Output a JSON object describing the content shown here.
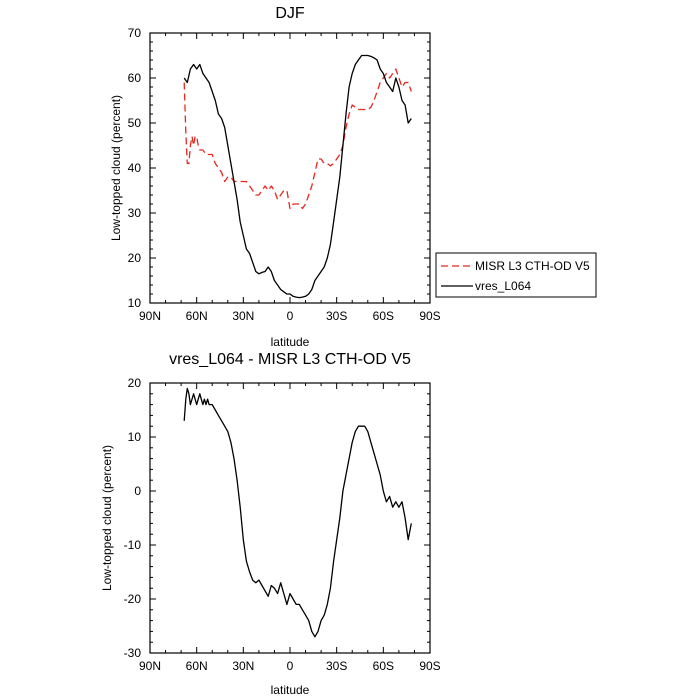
{
  "chart_data": [
    {
      "type": "line",
      "title": "DJF",
      "xlabel": "latitude",
      "ylabel": "Low-topped cloud (percent)",
      "xlim": [
        -90,
        90
      ],
      "ylim": [
        10,
        70
      ],
      "x_ticks": [
        -90,
        -60,
        -30,
        0,
        30,
        60,
        90
      ],
      "x_tick_labels": [
        "90N",
        "60N",
        "30N",
        "0",
        "30S",
        "60S",
        "90S"
      ],
      "y_ticks": [
        10,
        20,
        30,
        40,
        50,
        60,
        70
      ],
      "y_tick_labels": [
        "10",
        "20",
        "30",
        "40",
        "50",
        "60",
        "70"
      ],
      "legend": "right-outside",
      "series": [
        {
          "name": "MISR L3 CTH-OD V5",
          "color": "#e8271f",
          "dash": "dashed",
          "points": [
            [
              -68,
              59
            ],
            [
              -67,
              48
            ],
            [
              -66,
              41
            ],
            [
              -65,
              41
            ],
            [
              -64,
              45
            ],
            [
              -63,
              47
            ],
            [
              -62,
              45
            ],
            [
              -61,
              47
            ],
            [
              -60,
              47
            ],
            [
              -59,
              45
            ],
            [
              -58,
              44
            ],
            [
              -56,
              44
            ],
            [
              -54,
              43
            ],
            [
              -52,
              43
            ],
            [
              -50,
              43
            ],
            [
              -48,
              41
            ],
            [
              -46,
              40
            ],
            [
              -44,
              39
            ],
            [
              -42,
              37
            ],
            [
              -40,
              38
            ],
            [
              -38,
              38
            ],
            [
              -36,
              37
            ],
            [
              -34,
              37
            ],
            [
              -32,
              37
            ],
            [
              -30,
              37
            ],
            [
              -28,
              37
            ],
            [
              -26,
              36
            ],
            [
              -24,
              35
            ],
            [
              -22,
              34
            ],
            [
              -20,
              34
            ],
            [
              -18,
              35
            ],
            [
              -16,
              36
            ],
            [
              -14,
              35
            ],
            [
              -12,
              36
            ],
            [
              -10,
              35
            ],
            [
              -8,
              33
            ],
            [
              -6,
              34
            ],
            [
              -4,
              35
            ],
            [
              -2,
              35
            ],
            [
              0,
              31
            ],
            [
              2,
              32
            ],
            [
              4,
              32
            ],
            [
              6,
              32
            ],
            [
              8,
              31
            ],
            [
              10,
              32
            ],
            [
              12,
              34
            ],
            [
              14,
              36
            ],
            [
              16,
              39
            ],
            [
              18,
              42
            ],
            [
              20,
              42
            ],
            [
              22,
              41
            ],
            [
              24,
              41
            ],
            [
              26,
              40.5
            ],
            [
              28,
              41
            ],
            [
              30,
              42
            ],
            [
              32,
              43
            ],
            [
              34,
              45
            ],
            [
              36,
              49
            ],
            [
              38,
              52
            ],
            [
              40,
              54
            ],
            [
              42,
              53.5
            ],
            [
              44,
              53
            ],
            [
              46,
              53
            ],
            [
              48,
              53
            ],
            [
              50,
              53
            ],
            [
              52,
              53.5
            ],
            [
              54,
              55
            ],
            [
              56,
              57
            ],
            [
              58,
              59
            ],
            [
              60,
              60
            ],
            [
              62,
              61
            ],
            [
              64,
              60
            ],
            [
              66,
              61
            ],
            [
              68,
              62
            ],
            [
              70,
              60
            ],
            [
              72,
              58
            ],
            [
              74,
              59
            ],
            [
              76,
              59
            ],
            [
              78,
              57
            ]
          ]
        },
        {
          "name": "vres_L064",
          "color": "#000000",
          "dash": "solid",
          "points": [
            [
              -68,
              60
            ],
            [
              -66,
              59
            ],
            [
              -64,
              62
            ],
            [
              -62,
              63
            ],
            [
              -60,
              62
            ],
            [
              -58,
              63
            ],
            [
              -56,
              61
            ],
            [
              -54,
              60
            ],
            [
              -52,
              59
            ],
            [
              -50,
              57
            ],
            [
              -48,
              55
            ],
            [
              -46,
              52
            ],
            [
              -44,
              51
            ],
            [
              -42,
              49
            ],
            [
              -40,
              45
            ],
            [
              -38,
              41
            ],
            [
              -36,
              37
            ],
            [
              -34,
              33
            ],
            [
              -32,
              28
            ],
            [
              -30,
              25
            ],
            [
              -28,
              22
            ],
            [
              -26,
              21
            ],
            [
              -24,
              19
            ],
            [
              -22,
              17
            ],
            [
              -20,
              16.5
            ],
            [
              -18,
              16.8
            ],
            [
              -16,
              17
            ],
            [
              -14,
              18
            ],
            [
              -12,
              17
            ],
            [
              -10,
              15
            ],
            [
              -8,
              14
            ],
            [
              -6,
              13
            ],
            [
              -4,
              12.5
            ],
            [
              -2,
              12
            ],
            [
              0,
              12
            ],
            [
              2,
              11.5
            ],
            [
              4,
              11.3
            ],
            [
              6,
              11.2
            ],
            [
              8,
              11.3
            ],
            [
              10,
              11.5
            ],
            [
              12,
              12
            ],
            [
              14,
              13
            ],
            [
              16,
              15
            ],
            [
              18,
              16
            ],
            [
              20,
              17
            ],
            [
              22,
              18
            ],
            [
              24,
              20
            ],
            [
              26,
              23
            ],
            [
              28,
              28
            ],
            [
              30,
              33
            ],
            [
              32,
              38
            ],
            [
              34,
              45
            ],
            [
              36,
              52
            ],
            [
              38,
              58
            ],
            [
              40,
              61
            ],
            [
              42,
              63
            ],
            [
              44,
              64
            ],
            [
              46,
              65
            ],
            [
              48,
              65
            ],
            [
              50,
              65
            ],
            [
              52,
              64.8
            ],
            [
              54,
              64.5
            ],
            [
              56,
              64
            ],
            [
              58,
              62
            ],
            [
              60,
              61
            ],
            [
              62,
              59
            ],
            [
              64,
              58
            ],
            [
              66,
              57
            ],
            [
              68,
              60
            ],
            [
              70,
              58
            ],
            [
              72,
              55
            ],
            [
              74,
              54
            ],
            [
              76,
              50
            ],
            [
              78,
              51
            ]
          ]
        }
      ]
    },
    {
      "type": "line",
      "title": "vres_L064 - MISR L3 CTH-OD V5",
      "xlabel": "latitude",
      "ylabel": "Low-topped cloud (percent)",
      "xlim": [
        -90,
        90
      ],
      "ylim": [
        -30,
        20
      ],
      "x_ticks": [
        -90,
        -60,
        -30,
        0,
        30,
        60,
        90
      ],
      "x_tick_labels": [
        "90N",
        "60N",
        "30N",
        "0",
        "30S",
        "60S",
        "90S"
      ],
      "y_ticks": [
        -30,
        -20,
        -10,
        0,
        10,
        20
      ],
      "y_tick_labels": [
        "-30",
        "-20",
        "-10",
        "0",
        "10",
        "20"
      ],
      "series": [
        {
          "color": "#000000",
          "dash": "solid",
          "points": [
            [
              -68,
              13
            ],
            [
              -67,
              17
            ],
            [
              -66,
              19
            ],
            [
              -65,
              18
            ],
            [
              -64,
              16
            ],
            [
              -63,
              17
            ],
            [
              -62,
              18
            ],
            [
              -61,
              17
            ],
            [
              -60,
              16
            ],
            [
              -59,
              17
            ],
            [
              -58,
              18
            ],
            [
              -57,
              17
            ],
            [
              -56,
              16
            ],
            [
              -55,
              17
            ],
            [
              -54,
              16
            ],
            [
              -53,
              17
            ],
            [
              -52,
              16
            ],
            [
              -50,
              16
            ],
            [
              -48,
              15
            ],
            [
              -46,
              14
            ],
            [
              -44,
              13
            ],
            [
              -42,
              12
            ],
            [
              -40,
              11
            ],
            [
              -38,
              9
            ],
            [
              -36,
              6
            ],
            [
              -34,
              2
            ],
            [
              -32,
              -3
            ],
            [
              -30,
              -9
            ],
            [
              -28,
              -13
            ],
            [
              -26,
              -15
            ],
            [
              -24,
              -16.5
            ],
            [
              -22,
              -17
            ],
            [
              -20,
              -16.5
            ],
            [
              -18,
              -17.5
            ],
            [
              -16,
              -18.5
            ],
            [
              -14,
              -19.5
            ],
            [
              -12,
              -17.5
            ],
            [
              -10,
              -18
            ],
            [
              -8,
              -19
            ],
            [
              -6,
              -17
            ],
            [
              -4,
              -19
            ],
            [
              -2,
              -21
            ],
            [
              0,
              -19
            ],
            [
              2,
              -20
            ],
            [
              4,
              -21
            ],
            [
              6,
              -21
            ],
            [
              8,
              -22
            ],
            [
              10,
              -23
            ],
            [
              12,
              -24
            ],
            [
              14,
              -26
            ],
            [
              16,
              -27
            ],
            [
              18,
              -26
            ],
            [
              20,
              -24
            ],
            [
              22,
              -23
            ],
            [
              24,
              -21
            ],
            [
              26,
              -18
            ],
            [
              28,
              -13
            ],
            [
              30,
              -9
            ],
            [
              32,
              -5
            ],
            [
              34,
              0
            ],
            [
              36,
              3
            ],
            [
              38,
              6
            ],
            [
              40,
              9
            ],
            [
              42,
              11
            ],
            [
              44,
              12
            ],
            [
              46,
              12
            ],
            [
              48,
              12
            ],
            [
              50,
              11
            ],
            [
              52,
              9
            ],
            [
              54,
              7
            ],
            [
              56,
              5
            ],
            [
              58,
              3
            ],
            [
              60,
              0
            ],
            [
              62,
              -2
            ],
            [
              64,
              -1
            ],
            [
              66,
              -3
            ],
            [
              68,
              -2
            ],
            [
              70,
              -3
            ],
            [
              72,
              -2
            ],
            [
              74,
              -5
            ],
            [
              76,
              -9
            ],
            [
              78,
              -6
            ]
          ]
        }
      ]
    }
  ]
}
